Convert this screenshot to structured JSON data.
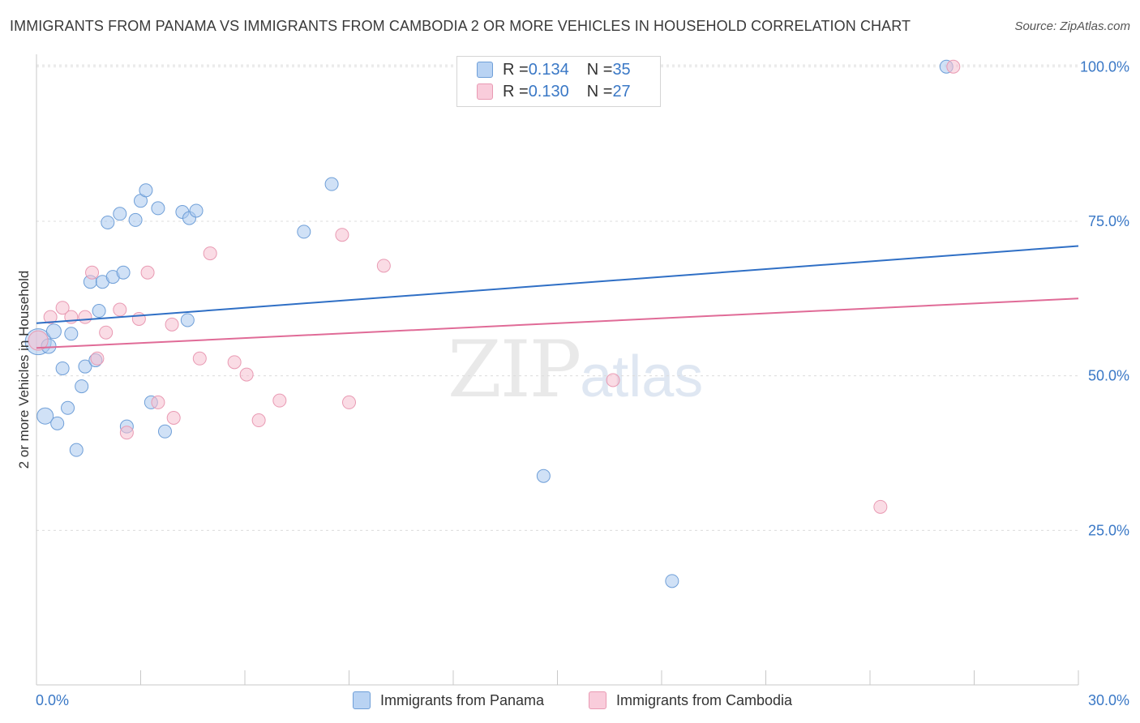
{
  "title": "IMMIGRANTS FROM PANAMA VS IMMIGRANTS FROM CAMBODIA 2 OR MORE VEHICLES IN HOUSEHOLD CORRELATION CHART",
  "source": "Source: ZipAtlas.com",
  "watermark": {
    "zip": "ZIP",
    "atlas": "atlas"
  },
  "legend": {
    "panama": {
      "r_label": "R = ",
      "r_value": "0.134",
      "n_label": "N = ",
      "n_value": "35"
    },
    "cambodia": {
      "r_label": "R = ",
      "r_value": "0.130",
      "n_label": "N = ",
      "n_value": "27"
    }
  },
  "colors": {
    "panama_fill": "#a9c8ef",
    "panama_stroke": "#6f9fd8",
    "panama_line": "#2f6fc5",
    "cambodia_fill": "#f6c0d0",
    "cambodia_stroke": "#e99ab3",
    "cambodia_line": "#e06b97",
    "tick_text": "#3a78c6"
  },
  "chart_data": {
    "type": "scatter",
    "title": "IMMIGRANTS FROM PANAMA VS IMMIGRANTS FROM CAMBODIA 2 OR MORE VEHICLES IN HOUSEHOLD CORRELATION CHART",
    "xlabel": "",
    "ylabel": "2 or more Vehicles in Household",
    "xlim": [
      0,
      30
    ],
    "ylim": [
      0,
      102
    ],
    "x_tick_labels": [
      {
        "v": 0,
        "label": "0.0%"
      },
      {
        "v": 30,
        "label": "30.0%"
      }
    ],
    "y_tick_labels": [
      {
        "v": 25,
        "label": "25.0%"
      },
      {
        "v": 50,
        "label": "50.0%"
      },
      {
        "v": 75,
        "label": "75.0%"
      },
      {
        "v": 100,
        "label": "100.0%"
      }
    ],
    "grid": true,
    "legend_position": "top-center",
    "series": [
      {
        "name": "Immigrants from Panama",
        "color": "#a9c8ef",
        "trend": {
          "x": [
            0,
            30
          ],
          "y": [
            58.5,
            71.0
          ]
        },
        "points": [
          [
            0.05,
            55.5,
            16
          ],
          [
            0.25,
            43.5,
            10
          ],
          [
            0.35,
            54.8,
            9
          ],
          [
            0.5,
            57.2,
            9
          ],
          [
            0.6,
            42.3,
            8
          ],
          [
            0.75,
            51.2,
            8
          ],
          [
            0.9,
            44.8,
            8
          ],
          [
            1.0,
            56.8,
            8
          ],
          [
            1.15,
            38.0,
            8
          ],
          [
            1.3,
            48.3,
            8
          ],
          [
            1.4,
            51.5,
            8
          ],
          [
            1.55,
            65.2,
            8
          ],
          [
            1.7,
            52.5,
            8
          ],
          [
            1.8,
            60.5,
            8
          ],
          [
            1.9,
            65.2,
            8
          ],
          [
            2.05,
            74.8,
            8
          ],
          [
            2.2,
            66.0,
            8
          ],
          [
            2.4,
            76.2,
            8
          ],
          [
            2.5,
            66.7,
            8
          ],
          [
            2.6,
            41.8,
            8
          ],
          [
            2.85,
            75.2,
            8
          ],
          [
            3.0,
            78.3,
            8
          ],
          [
            3.15,
            80.0,
            8
          ],
          [
            3.3,
            45.7,
            8
          ],
          [
            3.5,
            77.1,
            8
          ],
          [
            3.7,
            41.0,
            8
          ],
          [
            4.2,
            76.5,
            8
          ],
          [
            4.35,
            59.0,
            8
          ],
          [
            4.4,
            75.5,
            8
          ],
          [
            4.6,
            76.7,
            8
          ],
          [
            7.7,
            73.3,
            8
          ],
          [
            8.5,
            81.0,
            8
          ],
          [
            14.6,
            33.8,
            8
          ],
          [
            18.3,
            16.8,
            8
          ],
          [
            26.2,
            100.0,
            8
          ]
        ]
      },
      {
        "name": "Immigrants from Cambodia",
        "color": "#f6c0d0",
        "trend": {
          "x": [
            0,
            30
          ],
          "y": [
            54.5,
            62.5
          ]
        },
        "points": [
          [
            0.05,
            55.7,
            12
          ],
          [
            0.4,
            59.5,
            8
          ],
          [
            0.75,
            61.0,
            8
          ],
          [
            1.0,
            59.5,
            8
          ],
          [
            1.4,
            59.5,
            8
          ],
          [
            1.6,
            66.7,
            8
          ],
          [
            1.75,
            52.8,
            8
          ],
          [
            2.0,
            57.0,
            8
          ],
          [
            2.4,
            60.7,
            8
          ],
          [
            2.6,
            40.8,
            8
          ],
          [
            2.95,
            59.2,
            8
          ],
          [
            3.2,
            66.7,
            8
          ],
          [
            3.5,
            45.7,
            8
          ],
          [
            3.9,
            58.3,
            8
          ],
          [
            3.95,
            43.2,
            8
          ],
          [
            4.7,
            52.8,
            8
          ],
          [
            5.0,
            69.8,
            8
          ],
          [
            5.7,
            52.2,
            8
          ],
          [
            6.05,
            50.2,
            8
          ],
          [
            6.4,
            42.8,
            8
          ],
          [
            7.0,
            46.0,
            8
          ],
          [
            8.8,
            72.8,
            8
          ],
          [
            9.0,
            45.7,
            8
          ],
          [
            10.0,
            67.8,
            8
          ],
          [
            16.6,
            49.3,
            8
          ],
          [
            24.3,
            28.8,
            8
          ],
          [
            26.4,
            100.0,
            8
          ]
        ]
      }
    ]
  }
}
